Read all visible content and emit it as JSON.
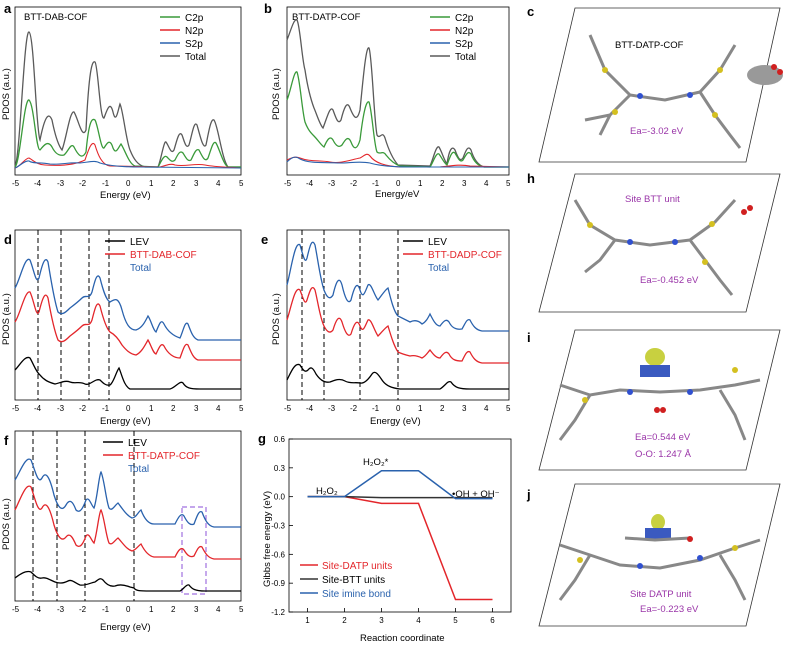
{
  "labels": {
    "a": "a",
    "b": "b",
    "c": "c",
    "d": "d",
    "e": "e",
    "f": "f",
    "g": "g",
    "h": "h",
    "i": "i",
    "j": "j"
  },
  "colors": {
    "green": "#3a9a3a",
    "red": "#e3262b",
    "blue": "#2a62ad",
    "grey": "#5a5a5a",
    "black": "#000000",
    "purple": "#9a35a8",
    "dashpurple": "#a070e0"
  },
  "panel_a": {
    "title": "BTT-DAB-COF",
    "ylabel": "PDOS (a.u.)",
    "xlabel": "Energy (eV)",
    "legend": [
      "C2p",
      "N2p",
      "S2p",
      "Total"
    ],
    "xticks": [
      "-5",
      "-4",
      "-3",
      "-2",
      "-1",
      "0",
      "1",
      "2",
      "3",
      "4",
      "5"
    ]
  },
  "panel_b": {
    "title": "BTT-DATP-COF",
    "ylabel": "PDOS (a.u.)",
    "xlabel": "Energy/eV",
    "legend": [
      "C2p",
      "N2p",
      "S2p",
      "Total"
    ],
    "xticks": [
      "-5",
      "-4",
      "-3",
      "-2",
      "-1",
      "0",
      "1",
      "2",
      "3",
      "4",
      "5"
    ]
  },
  "panel_d": {
    "ylabel": "PDOS (a.u.)",
    "xlabel": "Energy (eV)",
    "legend": [
      "LEV",
      "BTT-DAB-COF",
      "Total"
    ],
    "xticks": [
      "-5",
      "-4",
      "-3",
      "-2",
      "-1",
      "0",
      "1",
      "2",
      "3",
      "4",
      "5"
    ]
  },
  "panel_e": {
    "ylabel": "PDOS (a.u.)",
    "xlabel": "Energy (eV)",
    "legend": [
      "LEV",
      "BTT-DADP-COF",
      "Total"
    ],
    "xticks": [
      "-5",
      "-4",
      "-3",
      "-2",
      "-1",
      "0",
      "1",
      "2",
      "3",
      "4",
      "5"
    ]
  },
  "panel_f": {
    "ylabel": "PDOS (a.u.)",
    "xlabel": "Energy (eV)",
    "legend": [
      "LEV",
      "BTT-DATP-COF",
      "Total"
    ],
    "xticks": [
      "-5",
      "-4",
      "-3",
      "-2",
      "-1",
      "0",
      "1",
      "2",
      "3",
      "4",
      "5"
    ]
  },
  "panel_c": {
    "title": "BTT-DATP-COF",
    "energy": "Ea=-3.02 eV"
  },
  "panel_h": {
    "title": "Site BTT unit",
    "energy": "Ea=-0.452 eV"
  },
  "panel_i": {
    "energy": "Ea=0.544 eV",
    "bond": "O-O: 1.247 Å"
  },
  "panel_j": {
    "title": "Site DATP unit",
    "energy": "Ea=-0.223 eV"
  },
  "chart_data": [
    {
      "type": "bar",
      "panel": "g",
      "title": "",
      "xlabel": "Reaction coordinate",
      "ylabel": "Gibbs free energy (eV)",
      "xticks": [
        "1",
        "2",
        "3",
        "4",
        "5",
        "6"
      ],
      "yticks": [
        "0.6",
        "0.3",
        "0.0",
        "-0.3",
        "-0.6",
        "-0.9",
        "-1.2"
      ],
      "xlim": [
        0.5,
        6.5
      ],
      "ylim": [
        -1.2,
        0.6
      ],
      "annotations": [
        "H₂O₂",
        "H₂O₂*",
        "•OH + OH⁻"
      ],
      "series": [
        {
          "name": "Site-DATP units",
          "color": "#e3262b",
          "x": [
            1,
            2,
            3,
            4,
            5,
            6
          ],
          "values": [
            0.0,
            0.0,
            -0.07,
            -0.07,
            -1.07,
            -1.07
          ]
        },
        {
          "name": "Site-BTT units",
          "color": "#333333",
          "x": [
            1,
            2,
            3,
            4,
            5,
            6
          ],
          "values": [
            0.0,
            0.0,
            -0.01,
            -0.01,
            -0.01,
            -0.01
          ]
        },
        {
          "name": "Site imine bond",
          "color": "#2a62ad",
          "x": [
            1,
            2,
            3,
            4,
            5,
            6
          ],
          "values": [
            0.0,
            0.0,
            0.27,
            0.27,
            -0.02,
            -0.02
          ]
        }
      ]
    }
  ]
}
